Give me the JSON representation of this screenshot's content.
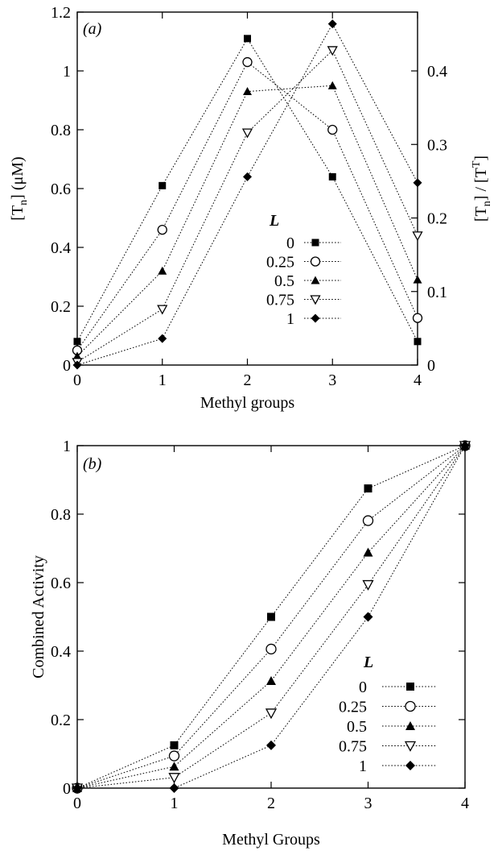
{
  "chart_data": [
    {
      "type": "line",
      "panel_label": "(a)",
      "xlabel": "Methyl groups",
      "ylabel": "[T_n] (μM)",
      "ylabel_right": "[T_n] / [T^T]",
      "x": [
        0,
        1,
        2,
        3,
        4
      ],
      "xlim": [
        0,
        4
      ],
      "ylim": [
        0,
        1.2
      ],
      "ylim_right": [
        0,
        0.48
      ],
      "xticks": [
        "0",
        "1",
        "2",
        "3",
        "4"
      ],
      "yticks": [
        "0",
        "0.2",
        "0.4",
        "0.6",
        "0.8",
        "1",
        "1.2"
      ],
      "yticks_right": [
        "0",
        "0.1",
        "0.2",
        "0.3",
        "0.4"
      ],
      "legend_title": "L",
      "legend_position": "center-right",
      "grid": false,
      "series": [
        {
          "name": "0",
          "marker": "square-filled",
          "values": [
            0.08,
            0.61,
            1.11,
            0.64,
            0.08
          ]
        },
        {
          "name": "0.25",
          "marker": "circle-open",
          "values": [
            0.05,
            0.46,
            1.03,
            0.8,
            0.16
          ]
        },
        {
          "name": "0.5",
          "marker": "triangle-up-filled",
          "values": [
            0.03,
            0.32,
            0.93,
            0.95,
            0.29
          ]
        },
        {
          "name": "0.75",
          "marker": "triangle-down-open",
          "values": [
            0.01,
            0.19,
            0.79,
            1.07,
            0.44
          ]
        },
        {
          "name": "1",
          "marker": "diamond-filled",
          "values": [
            0.0,
            0.09,
            0.64,
            1.16,
            0.62
          ]
        }
      ]
    },
    {
      "type": "line",
      "panel_label": "(b)",
      "xlabel": "Methyl Groups",
      "ylabel": "Combined Activity",
      "x": [
        0,
        1,
        2,
        3,
        4
      ],
      "xlim": [
        0,
        4
      ],
      "ylim": [
        0,
        1
      ],
      "xticks": [
        "0",
        "1",
        "2",
        "3",
        "4"
      ],
      "yticks": [
        "0",
        "0.2",
        "0.4",
        "0.6",
        "0.8",
        "1"
      ],
      "legend_title": "L",
      "legend_position": "bottom-right",
      "grid": false,
      "series": [
        {
          "name": "0",
          "marker": "square-filled",
          "values": [
            0,
            0.125,
            0.5,
            0.875,
            1
          ]
        },
        {
          "name": "0.25",
          "marker": "circle-open",
          "values": [
            0,
            0.094,
            0.406,
            0.781,
            1
          ]
        },
        {
          "name": "0.5",
          "marker": "triangle-up-filled",
          "values": [
            0,
            0.063,
            0.313,
            0.688,
            1
          ]
        },
        {
          "name": "0.75",
          "marker": "triangle-down-open",
          "values": [
            0,
            0.031,
            0.219,
            0.594,
            1
          ]
        },
        {
          "name": "1",
          "marker": "diamond-filled",
          "values": [
            0,
            0.0,
            0.125,
            0.5,
            1
          ]
        }
      ]
    }
  ]
}
